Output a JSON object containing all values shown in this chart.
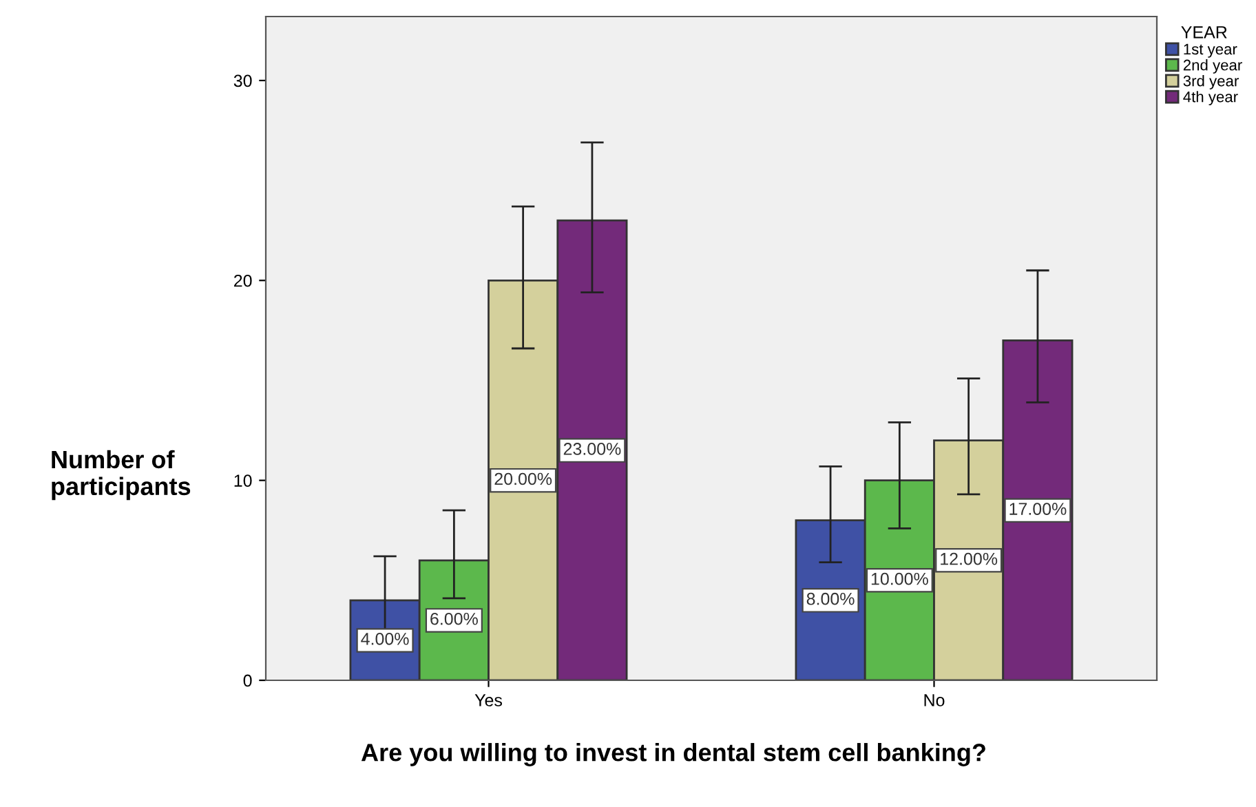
{
  "chart_data": {
    "type": "bar",
    "xlabel": "Are you willing to invest in dental stem cell banking?",
    "ylabel": "Number of\nparticipants",
    "legend_title": "YEAR",
    "categories": [
      "Yes",
      "No"
    ],
    "series": [
      {
        "name": "1st year",
        "color": "#3f51a5",
        "values": [
          4,
          8
        ],
        "errors": [
          [
            2.2,
            6.2
          ],
          [
            5.9,
            10.7
          ]
        ],
        "value_labels": [
          "4.00%",
          "8.00%"
        ]
      },
      {
        "name": "2nd year",
        "color": "#5cb84c",
        "values": [
          6,
          10
        ],
        "errors": [
          [
            4.1,
            8.5
          ],
          [
            7.6,
            12.9
          ]
        ],
        "value_labels": [
          "6.00%",
          "10.00%"
        ]
      },
      {
        "name": "3rd year",
        "color": "#d4d09c",
        "values": [
          20,
          12
        ],
        "errors": [
          [
            16.6,
            23.7
          ],
          [
            9.3,
            15.1
          ]
        ],
        "value_labels": [
          "20.00%",
          "12.00%"
        ]
      },
      {
        "name": "4th year",
        "color": "#732a7a",
        "values": [
          23,
          17
        ],
        "errors": [
          [
            19.4,
            26.9
          ],
          [
            13.9,
            20.5
          ]
        ],
        "value_labels": [
          "23.00%",
          "17.00%"
        ]
      }
    ],
    "ylim": [
      0,
      33.2
    ],
    "yticks": [
      0,
      10,
      20,
      30
    ],
    "grid": false,
    "legend": "top right"
  }
}
